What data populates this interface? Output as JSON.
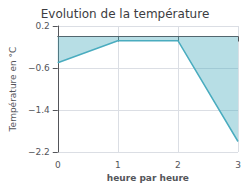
{
  "chart_data": {
    "type": "line",
    "title": "Evolution de la température",
    "xlabel": "heure par heure",
    "ylabel": "Température en °C",
    "x": [
      0,
      1,
      2,
      3
    ],
    "values": [
      -0.5,
      -0.08,
      -0.08,
      -2.0
    ],
    "color": "#4aacbf",
    "xlim": [
      0,
      3
    ],
    "xticks": [
      0,
      1,
      2,
      3
    ],
    "ylim": [
      -2.2,
      0.2
    ],
    "yticks": [
      0.2,
      {
        "value": -0.6,
        "label": "−0.6"
      },
      {
        "value": -1.4,
        "label": "−1.4"
      },
      {
        "value": -2.2,
        "label": "−2.2"
      }
    ],
    "grid": true
  }
}
